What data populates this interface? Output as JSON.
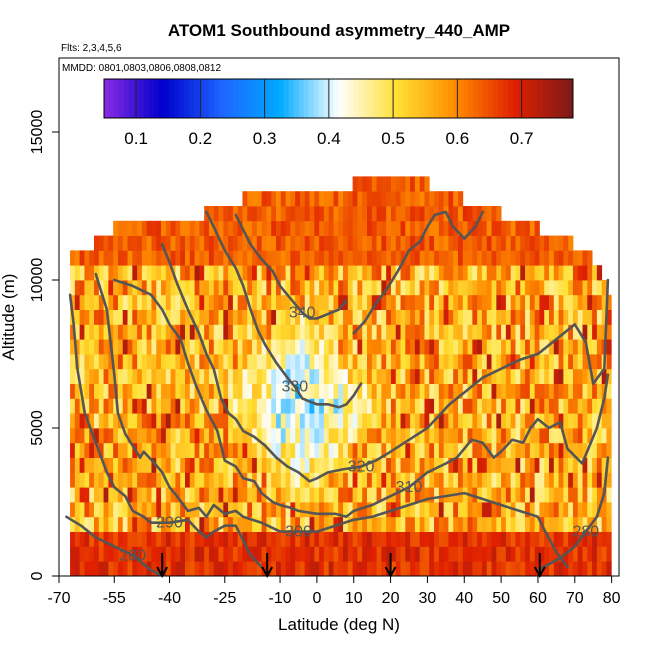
{
  "chart_data": {
    "type": "heatmap",
    "title": "ATOM1 Southbound asymmetry_440_AMP",
    "flights_label": "Flts: 2,3,4,5,6",
    "dates_label": "MMDD: 0801,0803,0806,0808,0812",
    "xlabel": "Latitude (deg N)",
    "ylabel": "Altitude (m)",
    "xlim": [
      -70,
      82
    ],
    "ylim": [
      0,
      17500
    ],
    "x_ticks": [
      "-70",
      "-55",
      "-40",
      "-25",
      "-10",
      "0",
      "10",
      "20",
      "30",
      "40",
      "50",
      "60",
      "70",
      "80"
    ],
    "y_ticks": [
      "0",
      "5000",
      "10000",
      "15000"
    ],
    "colorbar": {
      "range": [
        0.05,
        0.78
      ],
      "ticks": [
        "0.1",
        "0.2",
        "0.3",
        "0.4",
        "0.5",
        "0.6",
        "0.7"
      ],
      "colors": [
        "#8a2be2",
        "#0000cd",
        "#1e64ff",
        "#00aaff",
        "#ffffff",
        "#ffe033",
        "#ff8c00",
        "#e02000",
        "#7a1a1a"
      ]
    },
    "data_lat_range": [
      -67,
      79
    ],
    "data_alt_step_m": 500,
    "altitude_top_by_lat": [
      [
        -67,
        10500
      ],
      [
        -60,
        11000
      ],
      [
        -55,
        11500
      ],
      [
        -45,
        12000
      ],
      [
        -30,
        12000
      ],
      [
        -20,
        12500
      ],
      [
        -10,
        13000
      ],
      [
        -5,
        12500
      ],
      [
        0,
        13000
      ],
      [
        10,
        13000
      ],
      [
        20,
        13500
      ],
      [
        30,
        13000
      ],
      [
        40,
        12500
      ],
      [
        50,
        12000
      ],
      [
        60,
        11500
      ],
      [
        70,
        11000
      ],
      [
        75,
        10500
      ],
      [
        79,
        9500
      ]
    ],
    "low_value_region": {
      "lat_range": [
        -25,
        20
      ],
      "alt_range": [
        2000,
        9000
      ],
      "values": [
        0.3,
        0.45
      ]
    },
    "contours": [
      {
        "level": "280",
        "lat": [
          -68,
          -64,
          -60,
          -55,
          -50,
          -47,
          -45,
          -42
        ],
        "alt": [
          2000,
          1700,
          1300,
          1000,
          700,
          400,
          200,
          0
        ]
      },
      {
        "level": "290",
        "lat": [
          -67,
          -66,
          -65,
          -63,
          -60,
          -57,
          -55,
          -52,
          -50,
          -47,
          -45,
          -40,
          -35,
          -32,
          -30,
          -28,
          -25,
          -22,
          -20,
          -18,
          -15
        ],
        "alt": [
          9500,
          8500,
          7000,
          5500,
          4500,
          3500,
          3000,
          2700,
          2200,
          2000,
          1800,
          1800,
          1900,
          1500,
          1300,
          1500,
          1700,
          1700,
          1200,
          700,
          300
        ]
      },
      {
        "level": "300",
        "lat": [
          -60,
          -57,
          -55,
          -54,
          -52,
          -48,
          -47,
          -44,
          -42,
          -40,
          -38,
          -35,
          -32,
          -30,
          -28,
          -25,
          -22,
          -20,
          -15,
          -10,
          -5,
          0,
          5,
          10,
          15,
          20,
          25,
          30,
          35,
          40,
          45,
          50,
          55,
          60,
          62,
          65,
          68
        ],
        "alt": [
          10200,
          9000,
          6800,
          5500,
          4800,
          4000,
          4200,
          3800,
          3500,
          3000,
          2700,
          2200,
          2300,
          2000,
          2400,
          2100,
          2200,
          2000,
          1800,
          1500,
          1500,
          1500,
          1700,
          1900,
          2000,
          2200,
          2400,
          2600,
          2700,
          2800,
          2600,
          2400,
          2200,
          2000,
          1500,
          800,
          300
        ]
      },
      {
        "level": "280",
        "lat": [
          60,
          63,
          66,
          70,
          73,
          76,
          78,
          79
        ],
        "alt": [
          200,
          400,
          600,
          1000,
          1500,
          2000,
          2800,
          4000
        ]
      },
      {
        "level": "310",
        "lat": [
          -55,
          -50,
          -45,
          -42,
          -40,
          -37,
          -35,
          -33,
          -30,
          -27,
          -25,
          -22,
          -20,
          -17,
          -15,
          -12,
          -10,
          -7,
          -5,
          0,
          5,
          8,
          10,
          15,
          20,
          25,
          28,
          30,
          35,
          38,
          40,
          42,
          45,
          48,
          50,
          53,
          56,
          58,
          60,
          63,
          66,
          68,
          72,
          76,
          78,
          79
        ],
        "alt": [
          10000,
          9800,
          9500,
          9000,
          8500,
          8000,
          7200,
          6500,
          5600,
          4900,
          3900,
          3700,
          3300,
          3200,
          2800,
          2500,
          2400,
          2300,
          2200,
          2100,
          2100,
          2000,
          2200,
          2400,
          2700,
          3000,
          3300,
          3500,
          3800,
          4000,
          4300,
          4600,
          4500,
          4000,
          4200,
          4600,
          4500,
          5000,
          5300,
          5000,
          5200,
          4300,
          3800,
          5000,
          6000,
          6800
        ]
      },
      {
        "level": "320",
        "lat": [
          -42,
          -40,
          -38,
          -35,
          -32,
          -30,
          -28,
          -26,
          -24,
          -22,
          -20,
          -17,
          -14,
          -11,
          -8,
          -5,
          -2,
          0,
          3,
          7,
          12,
          16,
          20,
          25,
          30,
          33,
          36,
          40,
          45,
          50,
          55,
          60,
          65,
          70,
          73,
          75,
          78,
          79
        ],
        "alt": [
          11200,
          10600,
          9900,
          9000,
          8200,
          7500,
          7000,
          6000,
          5500,
          5300,
          4900,
          4700,
          4400,
          4000,
          3700,
          3500,
          3200,
          3300,
          3500,
          3600,
          3700,
          3900,
          4200,
          4600,
          5000,
          5400,
          5800,
          6200,
          6700,
          7000,
          7300,
          7500,
          8000,
          8500,
          7900,
          6500,
          7000,
          10000
        ]
      },
      {
        "level": "330",
        "lat": [
          -30,
          -28,
          -25,
          -22,
          -20,
          -18,
          -16,
          -14,
          -11,
          -8,
          -6,
          -4,
          -2,
          0,
          3,
          6,
          8,
          10,
          12
        ],
        "alt": [
          12300,
          11800,
          11000,
          10400,
          9800,
          9000,
          8300,
          7800,
          7200,
          6700,
          6400,
          6000,
          5900,
          5800,
          5800,
          5700,
          5800,
          6100,
          6500
        ]
      },
      {
        "level": "340",
        "lat": [
          -22,
          -20,
          -18,
          -15,
          -12,
          -10,
          -8,
          -6,
          -4,
          -2,
          0,
          2,
          4,
          6,
          8
        ],
        "alt": [
          12200,
          11700,
          11200,
          10700,
          10300,
          9800,
          9500,
          9200,
          8900,
          8700,
          8700,
          8800,
          8900,
          9000,
          9300
        ]
      },
      {
        "level": "",
        "lat": [
          10,
          13,
          16,
          19,
          22,
          25,
          28,
          30,
          32,
          35,
          37,
          40,
          43,
          45
        ],
        "alt": [
          8200,
          8600,
          9200,
          9700,
          10300,
          11000,
          11300,
          11800,
          12200,
          12300,
          11800,
          11400,
          11800,
          12300
        ]
      }
    ],
    "arrows_lat": [
      -42,
      -13.5,
      20,
      60.5
    ]
  }
}
